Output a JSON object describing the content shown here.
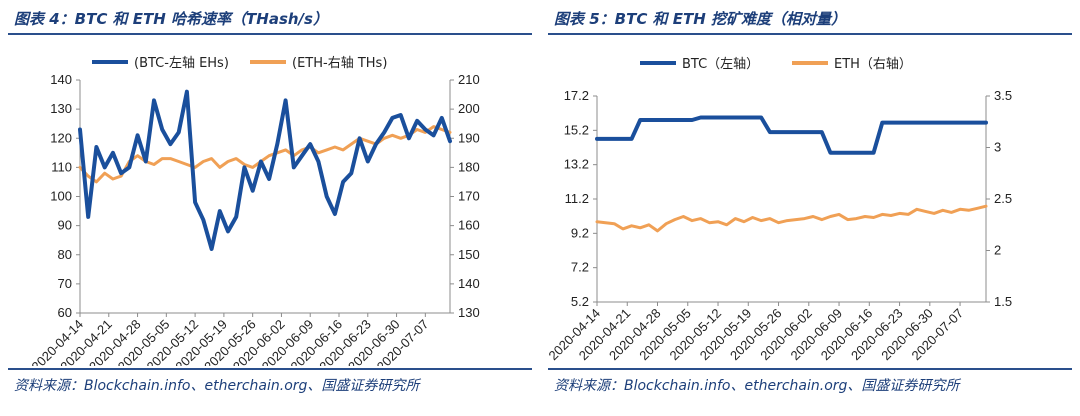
{
  "figures": [
    {
      "title": "图表 4：BTC 和 ETH 哈希速率（THash/s）",
      "source": "资料来源：Blockchain.info、etherchain.org、国盛证券研究所"
    },
    {
      "title": "图表 5：BTC 和 ETH 挖矿难度（相对量）",
      "source": "资料来源：Blockchain.info、etherchain.org、国盛证券研究所"
    }
  ],
  "colors": {
    "btc": "#1a4f9c",
    "eth": "#f0a055",
    "axis": "#8c8c8c",
    "frame": "#2a4f8c"
  },
  "chart_data": [
    {
      "type": "line",
      "title": "BTC 和 ETH 哈希速率（THash/s）",
      "x": [
        "2020-04-14",
        "2020-04-16",
        "2020-04-18",
        "2020-04-20",
        "2020-04-22",
        "2020-04-24",
        "2020-04-26",
        "2020-04-28",
        "2020-04-30",
        "2020-05-02",
        "2020-05-04",
        "2020-05-06",
        "2020-05-08",
        "2020-05-10",
        "2020-05-12",
        "2020-05-14",
        "2020-05-16",
        "2020-05-18",
        "2020-05-20",
        "2020-05-22",
        "2020-05-24",
        "2020-05-26",
        "2020-05-28",
        "2020-05-30",
        "2020-06-01",
        "2020-06-03",
        "2020-06-05",
        "2020-06-07",
        "2020-06-09",
        "2020-06-11",
        "2020-06-13",
        "2020-06-15",
        "2020-06-17",
        "2020-06-19",
        "2020-06-21",
        "2020-06-23",
        "2020-06-25",
        "2020-06-27",
        "2020-06-29",
        "2020-07-01",
        "2020-07-03",
        "2020-07-05",
        "2020-07-07",
        "2020-07-09",
        "2020-07-11",
        "2020-07-13"
      ],
      "x_tick_labels": [
        "2020-04-14",
        "2020-04-21",
        "2020-04-28",
        "2020-05-05",
        "2020-05-12",
        "2020-05-19",
        "2020-05-26",
        "2020-06-02",
        "2020-06-09",
        "2020-06-16",
        "2020-06-23",
        "2020-06-30",
        "2020-07-07"
      ],
      "y_left": {
        "range": [
          60,
          140
        ],
        "ticks": [
          60,
          70,
          80,
          90,
          100,
          110,
          120,
          130,
          140
        ]
      },
      "y_right": {
        "range": [
          130,
          210
        ],
        "ticks": [
          130,
          140,
          150,
          160,
          170,
          180,
          190,
          200,
          210
        ]
      },
      "legend": {
        "position": "top",
        "entries": [
          "(BTC-左轴 EHs)",
          "(ETH-右轴 THs)"
        ]
      },
      "series": [
        {
          "name": "(BTC-左轴 EHs)",
          "axis": "left",
          "color": "#1a4f9c",
          "values": [
            123,
            93,
            117,
            110,
            115,
            108,
            110,
            121,
            112,
            133,
            123,
            118,
            122,
            136,
            98,
            92,
            82,
            95,
            88,
            93,
            110,
            102,
            112,
            106,
            118,
            133,
            110,
            114,
            118,
            112,
            100,
            94,
            105,
            108,
            120,
            112,
            118,
            122,
            127,
            128,
            120,
            126,
            123,
            121,
            127,
            119
          ]
        },
        {
          "name": "(ETH-右轴 THs)",
          "axis": "right",
          "color": "#f0a055",
          "values": [
            180,
            177,
            175,
            178,
            176,
            177,
            182,
            184,
            182,
            181,
            183,
            183,
            182,
            181,
            180,
            182,
            183,
            180,
            182,
            183,
            181,
            180,
            182,
            184,
            185,
            186,
            184,
            186,
            187,
            185,
            186,
            187,
            186,
            188,
            190,
            189,
            188,
            190,
            191,
            190,
            191,
            193,
            192,
            194,
            193,
            192
          ]
        }
      ]
    },
    {
      "type": "line",
      "title": "BTC 和 ETH 挖矿难度（相对量）",
      "x": [
        "2020-04-14",
        "2020-04-16",
        "2020-04-18",
        "2020-04-20",
        "2020-04-22",
        "2020-04-24",
        "2020-04-26",
        "2020-04-28",
        "2020-04-30",
        "2020-05-02",
        "2020-05-04",
        "2020-05-06",
        "2020-05-08",
        "2020-05-10",
        "2020-05-12",
        "2020-05-14",
        "2020-05-16",
        "2020-05-18",
        "2020-05-20",
        "2020-05-22",
        "2020-05-24",
        "2020-05-26",
        "2020-05-28",
        "2020-05-30",
        "2020-06-01",
        "2020-06-03",
        "2020-06-05",
        "2020-06-07",
        "2020-06-09",
        "2020-06-11",
        "2020-06-13",
        "2020-06-15",
        "2020-06-17",
        "2020-06-19",
        "2020-06-21",
        "2020-06-23",
        "2020-06-25",
        "2020-06-27",
        "2020-06-29",
        "2020-07-01",
        "2020-07-03",
        "2020-07-05",
        "2020-07-07",
        "2020-07-09",
        "2020-07-11",
        "2020-07-13"
      ],
      "x_tick_labels": [
        "2020-04-14",
        "2020-04-21",
        "2020-04-28",
        "2020-05-05",
        "2020-05-12",
        "2020-05-19",
        "2020-05-26",
        "2020-06-02",
        "2020-06-09",
        "2020-06-16",
        "2020-06-23",
        "2020-06-30",
        "2020-07-07"
      ],
      "y_left": {
        "range": [
          5.2,
          17.2
        ],
        "ticks": [
          5.2,
          7.2,
          9.2,
          11.2,
          13.2,
          15.2,
          17.2
        ]
      },
      "y_right": {
        "range": [
          1.5,
          3.5
        ],
        "ticks": [
          1.5,
          2,
          2.5,
          3,
          3.5
        ]
      },
      "legend": {
        "position": "top",
        "entries": [
          "BTC（左轴）",
          "ETH（右轴）"
        ]
      },
      "series": [
        {
          "name": "BTC（左轴）",
          "axis": "left",
          "color": "#1a4f9c",
          "values": [
            14.7,
            14.7,
            14.7,
            14.7,
            14.7,
            15.8,
            15.8,
            15.8,
            15.8,
            15.8,
            15.8,
            15.8,
            15.95,
            15.95,
            15.95,
            15.95,
            15.95,
            15.95,
            15.95,
            15.95,
            15.1,
            15.1,
            15.1,
            15.1,
            15.1,
            15.1,
            15.1,
            13.9,
            13.9,
            13.9,
            13.9,
            13.9,
            13.9,
            15.65,
            15.65,
            15.65,
            15.65,
            15.65,
            15.65,
            15.65,
            15.65,
            15.65,
            15.65,
            15.65,
            15.65,
            15.65
          ]
        },
        {
          "name": "ETH（右轴）",
          "axis": "right",
          "color": "#f0a055",
          "values": [
            2.28,
            2.27,
            2.26,
            2.21,
            2.24,
            2.22,
            2.25,
            2.19,
            2.26,
            2.3,
            2.33,
            2.29,
            2.31,
            2.27,
            2.28,
            2.25,
            2.31,
            2.28,
            2.32,
            2.29,
            2.31,
            2.27,
            2.29,
            2.3,
            2.31,
            2.33,
            2.3,
            2.33,
            2.35,
            2.3,
            2.31,
            2.33,
            2.32,
            2.35,
            2.34,
            2.36,
            2.35,
            2.4,
            2.38,
            2.36,
            2.39,
            2.37,
            2.4,
            2.39,
            2.41,
            2.43
          ]
        }
      ]
    }
  ]
}
